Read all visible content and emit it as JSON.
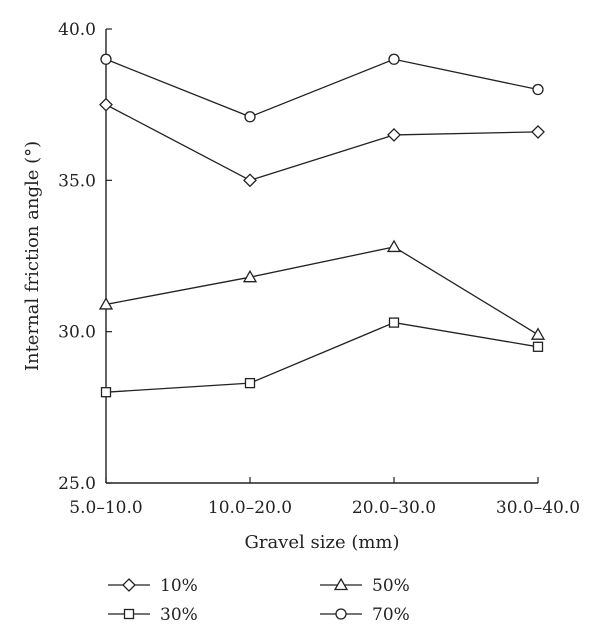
{
  "chart_data": {
    "type": "line",
    "categories": [
      "5.0–10.0",
      "10.0–20.0",
      "20.0–30.0",
      "30.0–40.0"
    ],
    "series": [
      {
        "name": "10%",
        "marker": "diamond",
        "values": [
          37.5,
          35.0,
          36.5,
          36.6
        ]
      },
      {
        "name": "30%",
        "marker": "square",
        "values": [
          28.0,
          28.3,
          30.3,
          29.5
        ]
      },
      {
        "name": "50%",
        "marker": "triangle",
        "values": [
          30.9,
          31.8,
          32.8,
          29.9
        ]
      },
      {
        "name": "70%",
        "marker": "circle",
        "values": [
          39.0,
          37.1,
          39.0,
          38.0
        ]
      }
    ],
    "title": "",
    "xlabel": "Gravel size (mm)",
    "ylabel": "Internal friction angle (°)",
    "ylim": [
      25.0,
      40.0
    ],
    "yticks": [
      "25.0",
      "30.0",
      "35.0",
      "40.0"
    ],
    "grid": false,
    "legend_position": "bottom",
    "legend_order": [
      "10%",
      "50%",
      "30%",
      "70%"
    ],
    "colors": {
      "line": "#222222",
      "marker_fill": "#ffffff",
      "background": "#ffffff"
    }
  }
}
